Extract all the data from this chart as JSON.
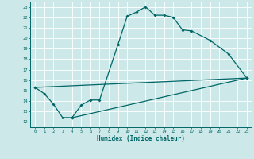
{
  "xlabel": "Humidex (Indice chaleur)",
  "bg_color": "#cce8e8",
  "line_color": "#006666",
  "line1_x": [
    0,
    1,
    2,
    3,
    4,
    5,
    6,
    7,
    9,
    10,
    11,
    12,
    13,
    14,
    15,
    16,
    17,
    19,
    21,
    23
  ],
  "line1_y": [
    15.3,
    14.7,
    13.7,
    12.4,
    12.4,
    13.6,
    14.1,
    14.1,
    19.4,
    22.1,
    22.5,
    23.0,
    22.2,
    22.2,
    22.0,
    20.8,
    20.7,
    19.8,
    18.5,
    16.2
  ],
  "line2_x": [
    3,
    4,
    23
  ],
  "line2_y": [
    12.4,
    12.4,
    16.2
  ],
  "line3_x": [
    0,
    23
  ],
  "line3_y": [
    15.3,
    16.2
  ],
  "xlim": [
    -0.5,
    23.5
  ],
  "ylim": [
    11.5,
    23.5
  ],
  "yticks": [
    12,
    13,
    14,
    15,
    16,
    17,
    18,
    19,
    20,
    21,
    22,
    23
  ],
  "xticks": [
    0,
    1,
    2,
    3,
    4,
    5,
    6,
    7,
    8,
    9,
    10,
    11,
    12,
    13,
    14,
    15,
    16,
    17,
    18,
    19,
    20,
    21,
    22,
    23
  ]
}
